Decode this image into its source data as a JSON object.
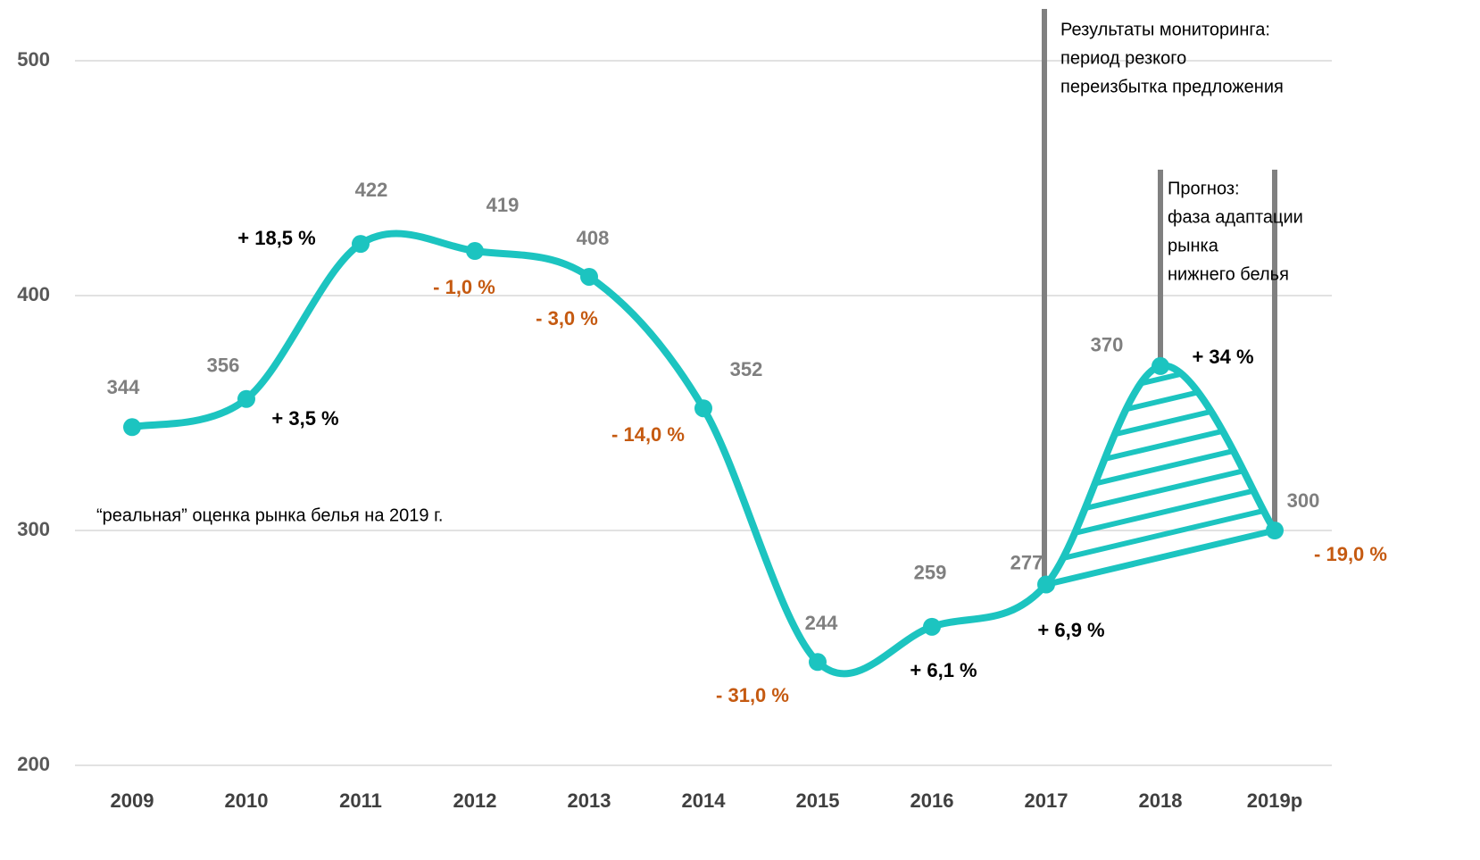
{
  "chart_data": {
    "type": "line",
    "categories": [
      "2009",
      "2010",
      "2011",
      "2012",
      "2013",
      "2014",
      "2015",
      "2016",
      "2017",
      "2018",
      "2019p"
    ],
    "values": [
      344,
      356,
      422,
      419,
      408,
      352,
      244,
      259,
      277,
      370,
      300
    ],
    "color": "#1cc4c0",
    "ylim": [
      200,
      500
    ],
    "yticks": [
      200,
      300,
      400,
      500
    ],
    "grid": true,
    "changes": [
      null,
      {
        "value": 3.5,
        "label": "+ 3,5 %"
      },
      {
        "value": 18.5,
        "label": "+ 18,5 %"
      },
      {
        "value": -1.0,
        "label": "- 1,0 %"
      },
      {
        "value": -3.0,
        "label": "- 3,0 %"
      },
      {
        "value": -14.0,
        "label": "- 14,0 %"
      },
      {
        "value": -31.0,
        "label": "- 31,0 %"
      },
      {
        "value": 6.1,
        "label": "+ 6,1 %"
      },
      {
        "value": 6.9,
        "label": "+ 6,9 %"
      },
      {
        "value": 34,
        "label": "+ 34 %"
      },
      {
        "value": -19.0,
        "label": "- 19,0 %"
      }
    ],
    "positive_color": "#000000",
    "negative_color": "#c55a11",
    "monitoring_note": [
      "Результаты мониторинга:",
      "период резкого",
      "переизбытка предложения"
    ],
    "forecast_note": [
      "Прогноз:",
      "фаза адаптации",
      "рынка",
      "нижнего белья"
    ],
    "estimate_note": "“реальная” оценка рынка белья на 2019 г."
  }
}
